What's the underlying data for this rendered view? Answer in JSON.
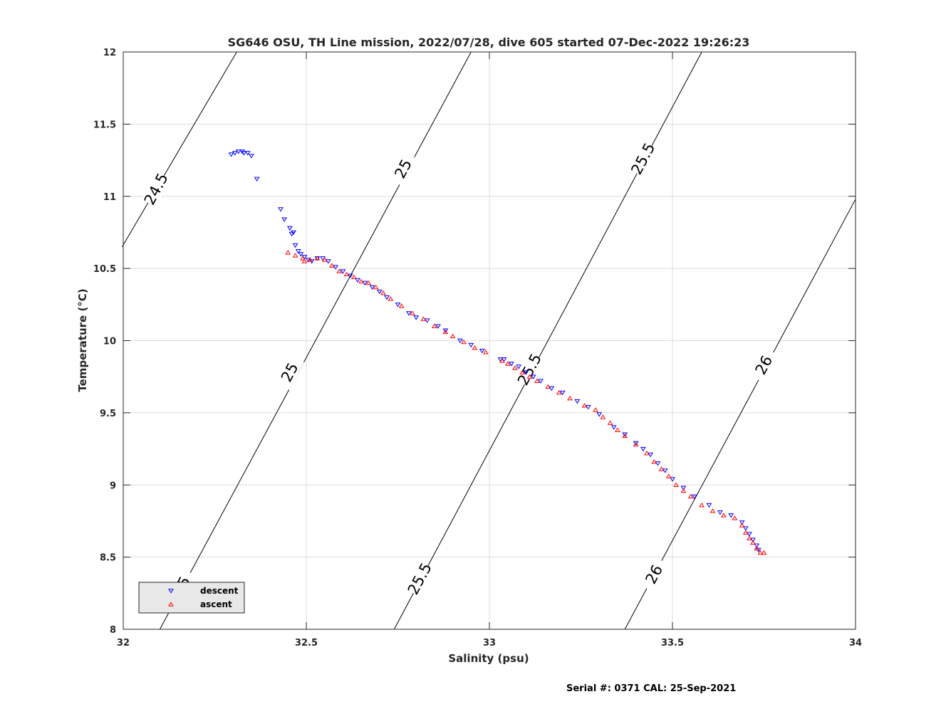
{
  "chart_data": {
    "type": "scatter",
    "title": "SG646 OSU, TH Line mission, 2022/07/28, dive 605 started 07-Dec-2022 19:26:23",
    "xlabel": "Salinity (psu)",
    "ylabel": "Temperature (°C)",
    "xlim": [
      32,
      34
    ],
    "ylim": [
      8,
      12
    ],
    "xticks": [
      32,
      32.5,
      33,
      33.5,
      34
    ],
    "yticks": [
      8,
      8.5,
      9,
      9.5,
      10,
      10.5,
      11,
      11.5,
      12
    ],
    "xtick_labels": [
      "32",
      "32.5",
      "33",
      "33.5",
      "34"
    ],
    "ytick_labels": [
      "8",
      "8.5",
      "9",
      "9.5",
      "10",
      "10.5",
      "11",
      "11.5",
      "12"
    ],
    "grid": true,
    "legend_placement": "bottom-left",
    "density_contours": [
      {
        "label": "24.5",
        "points": [
          [
            31.997,
            10.65
          ],
          [
            32.31,
            12.0
          ]
        ]
      },
      {
        "label": "25",
        "points": [
          [
            32.1,
            8.0
          ],
          [
            32.95,
            12.0
          ]
        ]
      },
      {
        "label": "25.5",
        "points": [
          [
            32.74,
            8.0
          ],
          [
            33.58,
            12.0
          ]
        ]
      },
      {
        "label": "26",
        "points": [
          [
            33.37,
            8.0
          ],
          [
            34.0,
            10.98
          ]
        ]
      }
    ],
    "contour_labels": [
      {
        "text": "24.5",
        "x": 32.09,
        "y": 11.05
      },
      {
        "text": "25",
        "x": 32.765,
        "y": 11.19
      },
      {
        "text": "25",
        "x": 32.455,
        "y": 9.78
      },
      {
        "text": "25",
        "x": 32.16,
        "y": 8.3
      },
      {
        "text": "25.5",
        "x": 33.42,
        "y": 11.26
      },
      {
        "text": "25.5",
        "x": 33.11,
        "y": 9.8
      },
      {
        "text": "25.5",
        "x": 32.81,
        "y": 8.35
      },
      {
        "text": "26",
        "x": 33.75,
        "y": 9.83
      },
      {
        "text": "26",
        "x": 33.45,
        "y": 8.38
      }
    ],
    "series": [
      {
        "name": "descent",
        "marker": "triangle-down",
        "color": "#0000ff",
        "points": [
          [
            32.295,
            11.29
          ],
          [
            32.305,
            11.3
          ],
          [
            32.315,
            11.31
          ],
          [
            32.325,
            11.31
          ],
          [
            32.33,
            11.3
          ],
          [
            32.34,
            11.3
          ],
          [
            32.35,
            11.28
          ],
          [
            32.365,
            11.12
          ],
          [
            32.43,
            10.91
          ],
          [
            32.44,
            10.84
          ],
          [
            32.455,
            10.78
          ],
          [
            32.46,
            10.74
          ],
          [
            32.465,
            10.75
          ],
          [
            32.47,
            10.66
          ],
          [
            32.478,
            10.62
          ],
          [
            32.485,
            10.6
          ],
          [
            32.495,
            10.58
          ],
          [
            32.505,
            10.56
          ],
          [
            32.515,
            10.55
          ],
          [
            32.53,
            10.57
          ],
          [
            32.545,
            10.57
          ],
          [
            32.56,
            10.55
          ],
          [
            32.58,
            10.51
          ],
          [
            32.6,
            10.48
          ],
          [
            32.62,
            10.45
          ],
          [
            32.64,
            10.42
          ],
          [
            32.66,
            10.4
          ],
          [
            32.68,
            10.37
          ],
          [
            32.7,
            10.34
          ],
          [
            32.72,
            10.3
          ],
          [
            32.75,
            10.25
          ],
          [
            32.78,
            10.19
          ],
          [
            32.8,
            10.16
          ],
          [
            32.83,
            10.14
          ],
          [
            32.86,
            10.1
          ],
          [
            32.88,
            10.07
          ],
          [
            32.92,
            10.0
          ],
          [
            32.95,
            9.97
          ],
          [
            32.98,
            9.93
          ],
          [
            33.03,
            9.87
          ],
          [
            33.04,
            9.87
          ],
          [
            33.06,
            9.84
          ],
          [
            33.08,
            9.82
          ],
          [
            33.1,
            9.78
          ],
          [
            33.12,
            9.75
          ],
          [
            33.14,
            9.72
          ],
          [
            33.17,
            9.67
          ],
          [
            33.2,
            9.64
          ],
          [
            33.24,
            9.58
          ],
          [
            33.27,
            9.54
          ],
          [
            33.3,
            9.49
          ],
          [
            33.34,
            9.4
          ],
          [
            33.37,
            9.35
          ],
          [
            33.4,
            9.29
          ],
          [
            33.42,
            9.25
          ],
          [
            33.44,
            9.21
          ],
          [
            33.46,
            9.15
          ],
          [
            33.48,
            9.1
          ],
          [
            33.5,
            9.04
          ],
          [
            33.53,
            8.98
          ],
          [
            33.56,
            8.92
          ],
          [
            33.6,
            8.86
          ],
          [
            33.63,
            8.81
          ],
          [
            33.66,
            8.79
          ],
          [
            33.69,
            8.74
          ],
          [
            33.7,
            8.7
          ],
          [
            33.71,
            8.66
          ],
          [
            33.72,
            8.62
          ],
          [
            33.73,
            8.58
          ],
          [
            33.735,
            8.55
          ]
        ]
      },
      {
        "name": "ascent",
        "marker": "triangle-up",
        "color": "#ff0000",
        "points": [
          [
            32.45,
            10.61
          ],
          [
            32.47,
            10.59
          ],
          [
            32.49,
            10.57
          ],
          [
            32.495,
            10.55
          ],
          [
            32.51,
            10.56
          ],
          [
            32.53,
            10.57
          ],
          [
            32.55,
            10.56
          ],
          [
            32.57,
            10.52
          ],
          [
            32.59,
            10.48
          ],
          [
            32.61,
            10.46
          ],
          [
            32.63,
            10.44
          ],
          [
            32.65,
            10.41
          ],
          [
            32.67,
            10.4
          ],
          [
            32.69,
            10.37
          ],
          [
            32.71,
            10.33
          ],
          [
            32.73,
            10.29
          ],
          [
            32.76,
            10.24
          ],
          [
            32.79,
            10.19
          ],
          [
            32.82,
            10.15
          ],
          [
            32.85,
            10.1
          ],
          [
            32.88,
            10.06
          ],
          [
            32.9,
            10.03
          ],
          [
            32.93,
            9.99
          ],
          [
            32.96,
            9.95
          ],
          [
            32.99,
            9.92
          ],
          [
            33.035,
            9.86
          ],
          [
            33.05,
            9.84
          ],
          [
            33.07,
            9.81
          ],
          [
            33.09,
            9.78
          ],
          [
            33.11,
            9.75
          ],
          [
            33.13,
            9.72
          ],
          [
            33.16,
            9.68
          ],
          [
            33.19,
            9.64
          ],
          [
            33.22,
            9.6
          ],
          [
            33.26,
            9.55
          ],
          [
            33.29,
            9.52
          ],
          [
            33.31,
            9.47
          ],
          [
            33.33,
            9.43
          ],
          [
            33.35,
            9.38
          ],
          [
            33.37,
            9.34
          ],
          [
            33.4,
            9.28
          ],
          [
            33.43,
            9.22
          ],
          [
            33.45,
            9.16
          ],
          [
            33.47,
            9.11
          ],
          [
            33.49,
            9.06
          ],
          [
            33.51,
            9.0
          ],
          [
            33.53,
            8.96
          ],
          [
            33.55,
            8.92
          ],
          [
            33.58,
            8.86
          ],
          [
            33.61,
            8.82
          ],
          [
            33.64,
            8.79
          ],
          [
            33.67,
            8.77
          ],
          [
            33.69,
            8.72
          ],
          [
            33.7,
            8.67
          ],
          [
            33.71,
            8.63
          ],
          [
            33.72,
            8.6
          ],
          [
            33.73,
            8.56
          ],
          [
            33.74,
            8.53
          ],
          [
            33.75,
            8.53
          ]
        ]
      }
    ],
    "footer": "Serial #: 0371  CAL: 25-Sep-2021"
  }
}
